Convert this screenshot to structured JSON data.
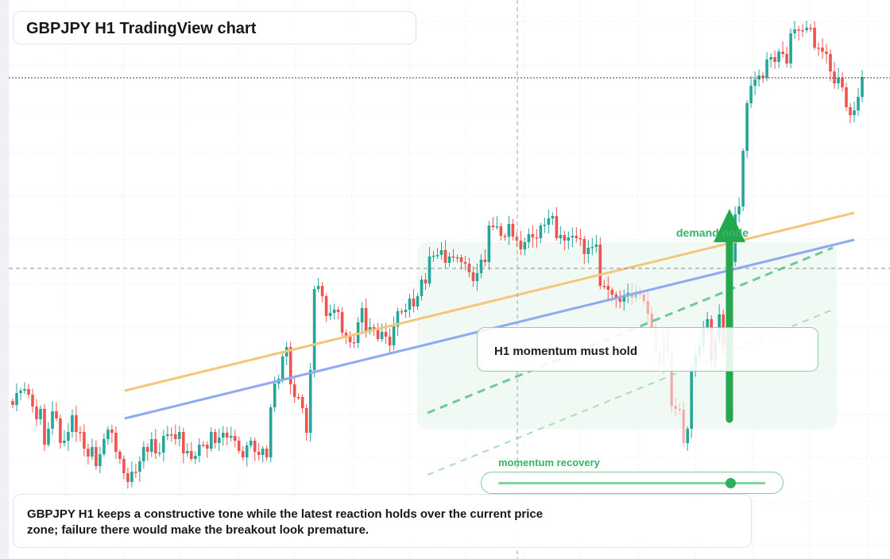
{
  "title": "GBPJPY H1 TradingView chart",
  "caption": "GBPJPY H1 keeps a constructive tone while the latest reaction holds over the current price zone; failure there would make the breakout look premature.",
  "callout": "H1 momentum must hold",
  "demand_label": "demand node",
  "momentum": {
    "label": "momentum recovery",
    "value": 0.87
  },
  "colors": {
    "up": "#26a69a",
    "down": "#ef5350",
    "accent": "#34b36a",
    "orange_line": "#f5c67a",
    "blue_line": "#8eaaf0"
  },
  "chart_data": {
    "type": "candlestick",
    "symbol": "GBPJPY",
    "timeframe": "H1",
    "grid": true,
    "series_note": "close values per hourly bar, read from the chart",
    "closes": [
      510,
      495,
      492,
      490,
      497,
      512,
      528,
      515,
      560,
      540,
      518,
      527,
      558,
      555,
      544,
      523,
      544,
      544,
      565,
      575,
      563,
      587,
      572,
      553,
      541,
      545,
      569,
      578,
      596,
      607,
      594,
      594,
      581,
      563,
      569,
      553,
      571,
      570,
      549,
      547,
      547,
      553,
      544,
      571,
      568,
      578,
      574,
      560,
      560,
      565,
      544,
      558,
      551,
      545,
      551,
      549,
      555,
      568,
      576,
      561,
      555,
      569,
      573,
      565,
      576,
      513,
      483,
      477,
      449,
      437,
      484,
      500,
      500,
      514,
      545,
      466,
      364,
      360,
      373,
      398,
      394,
      390,
      393,
      419,
      424,
      431,
      432,
      406,
      388,
      418,
      412,
      415,
      427,
      418,
      424,
      435,
      411,
      392,
      393,
      390,
      376,
      386,
      373,
      352,
      357,
      323,
      322,
      321,
      315,
      331,
      323,
      324,
      324,
      330,
      332,
      343,
      354,
      344,
      327,
      330,
      284,
      286,
      285,
      297,
      298,
      282,
      298,
      303,
      314,
      305,
      295,
      299,
      300,
      284,
      283,
      275,
      272,
      300,
      296,
      303,
      299,
      297,
      300,
      301,
      320,
      312,
      311,
      308,
      360,
      360,
      365,
      371,
      376,
      380,
      373,
      369,
      375,
      367,
      371,
      379,
      395,
      412,
      444,
      459,
      420,
      444,
      511,
      515,
      516,
      558,
      540,
      467,
      447,
      435,
      412,
      402,
      454,
      428,
      396,
      435,
      422,
      330,
      270,
      260,
      190,
      130,
      108,
      100,
      95,
      98,
      75,
      72,
      78,
      65,
      68,
      80,
      42,
      37,
      38,
      38,
      35,
      35,
      60,
      60,
      65,
      68,
      90,
      105,
      98,
      110,
      135,
      145,
      139,
      122,
      97
    ]
  },
  "overlays": {
    "support_line_1": [
      [
        157,
        492
      ],
      [
        1075,
        268
      ]
    ],
    "support_line_2": [
      [
        157,
        527
      ],
      [
        1075,
        302
      ]
    ]
  }
}
